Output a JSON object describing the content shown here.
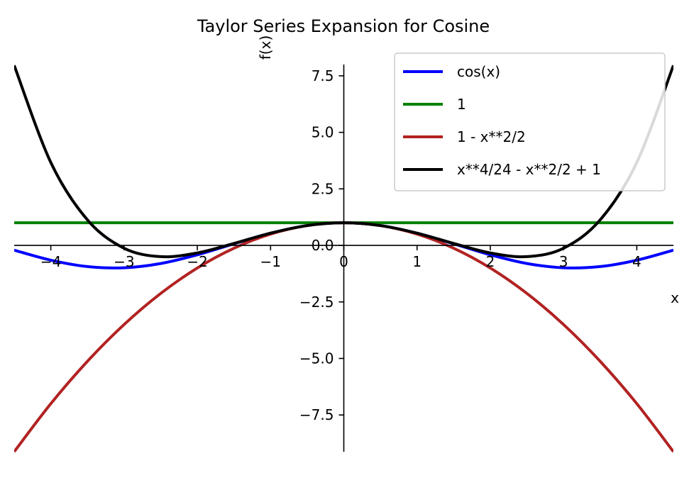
{
  "chart_data": {
    "type": "line",
    "title": "Taylor Series Expansion for Cosine",
    "xlabel": "x",
    "ylabel": "f(x)",
    "xlim": [
      -4.5,
      4.5
    ],
    "ylim": [
      -9.125,
      8.0
    ],
    "x_ticks": [
      -4,
      -3,
      -2,
      -1,
      0,
      1,
      2,
      3,
      4
    ],
    "x_tick_labels": [
      "−4",
      "−3",
      "−2",
      "−1",
      "0",
      "1",
      "2",
      "3",
      "4"
    ],
    "y_ticks": [
      -7.5,
      -5.0,
      -2.5,
      0.0,
      2.5,
      5.0,
      7.5
    ],
    "y_tick_labels": [
      "−7.5",
      "−5.0",
      "−2.5",
      "0.0",
      "2.5",
      "5.0",
      "7.5"
    ],
    "grid": false,
    "legend_position": "top-right",
    "series": [
      {
        "name": "cos(x)",
        "color": "#0000ff",
        "x": [
          -4.5,
          -4.0,
          -3.5,
          -3.0,
          -2.5,
          -2.0,
          -1.5,
          -1.0,
          -0.5,
          0.0,
          0.5,
          1.0,
          1.5,
          2.0,
          2.5,
          3.0,
          3.5,
          4.0,
          4.5
        ],
        "y": [
          -0.211,
          -0.654,
          -0.936,
          -0.99,
          -0.801,
          -0.416,
          0.071,
          0.54,
          0.878,
          1.0,
          0.878,
          0.54,
          0.071,
          -0.416,
          -0.801,
          -0.99,
          -0.936,
          -0.654,
          -0.211
        ]
      },
      {
        "name": "1",
        "color": "#008000",
        "x": [
          -4.5,
          4.5
        ],
        "y": [
          1,
          1
        ]
      },
      {
        "name": "1 - x**2/2",
        "color": "#b22222",
        "x": [
          -4.5,
          -4.0,
          -3.5,
          -3.0,
          -2.5,
          -2.0,
          -1.5,
          -1.0,
          -0.5,
          0.0,
          0.5,
          1.0,
          1.5,
          2.0,
          2.5,
          3.0,
          3.5,
          4.0,
          4.5
        ],
        "y": [
          -9.125,
          -7.0,
          -5.125,
          -3.5,
          -2.125,
          -1.0,
          -0.125,
          0.5,
          0.875,
          1.0,
          0.875,
          0.5,
          -0.125,
          -1.0,
          -2.125,
          -3.5,
          -5.125,
          -7.0,
          -9.125
        ]
      },
      {
        "name": "x**4/24 - x**2/2 + 1",
        "color": "#000000",
        "x": [
          -4.5,
          -4.0,
          -3.5,
          -3.0,
          -2.5,
          -2.0,
          -1.5,
          -1.0,
          -0.5,
          0.0,
          0.5,
          1.0,
          1.5,
          2.0,
          2.5,
          3.0,
          3.5,
          4.0,
          4.5
        ],
        "y": [
          7.961,
          3.667,
          1.128,
          -0.125,
          -0.497,
          -0.333,
          0.086,
          0.542,
          0.878,
          1.0,
          0.878,
          0.542,
          0.086,
          -0.333,
          -0.497,
          -0.125,
          1.128,
          3.667,
          7.961
        ]
      }
    ]
  }
}
